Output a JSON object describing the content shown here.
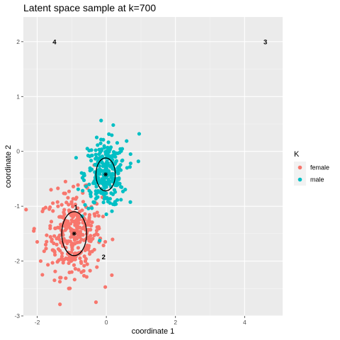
{
  "chart_data": {
    "type": "scatter",
    "title": "Latent space sample at k=700",
    "xlabel": "coordinate 1",
    "ylabel": "coordinate 2",
    "xlim": [
      -2.4,
      5.1
    ],
    "ylim": [
      -3.0,
      2.45
    ],
    "x_ticks": [
      -2,
      0,
      2,
      4
    ],
    "y_ticks": [
      -3,
      -2,
      -1,
      0,
      1,
      2
    ],
    "grid": true,
    "legend": {
      "title": "K",
      "placement": "right",
      "entries": [
        {
          "label": "female",
          "color": "#F8766D"
        },
        {
          "label": "male",
          "color": "#00BFC4"
        }
      ]
    },
    "clusters": [
      {
        "name": "female",
        "color": "#F8766D",
        "center": [
          -0.93,
          -1.5
        ],
        "sd": [
          0.4,
          0.38
        ],
        "n": 320
      },
      {
        "name": "male",
        "color": "#00BFC4",
        "center": [
          -0.02,
          -0.42
        ],
        "sd": [
          0.3,
          0.3
        ],
        "n": 290
      }
    ],
    "outliers": {
      "female": [
        [
          -1.9,
          -2.0
        ],
        [
          -1.85,
          -2.25
        ],
        [
          -1.82,
          -1.05
        ],
        [
          -1.6,
          -0.7
        ],
        [
          -2.1,
          -1.45
        ],
        [
          -2.0,
          -1.65
        ],
        [
          -0.3,
          -2.75
        ],
        [
          -0.35,
          -0.25
        ],
        [
          -1.0,
          -2.2
        ],
        [
          -1.5,
          -2.35
        ]
      ],
      "male": [
        [
          0.95,
          0.32
        ],
        [
          0.7,
          -0.05
        ],
        [
          -0.55,
          0.05
        ],
        [
          0.2,
          0.48
        ],
        [
          -0.45,
          -0.75
        ],
        [
          0.6,
          -0.3
        ]
      ]
    },
    "ellipses": [
      {
        "cluster": "female",
        "center": [
          -0.93,
          -1.5
        ],
        "rx": 0.36,
        "ry": 0.4,
        "label": "1"
      },
      {
        "cluster": "male",
        "center": [
          -0.02,
          -0.42
        ],
        "rx": 0.28,
        "ry": 0.3
      }
    ],
    "annotations": [
      {
        "text": "4",
        "x": -1.5,
        "y": 2.0
      },
      {
        "text": "3",
        "x": 4.6,
        "y": 2.0
      },
      {
        "text": "1",
        "x": -0.88,
        "y": -1.02
      },
      {
        "text": "2",
        "x": -0.08,
        "y": -1.92
      }
    ]
  }
}
